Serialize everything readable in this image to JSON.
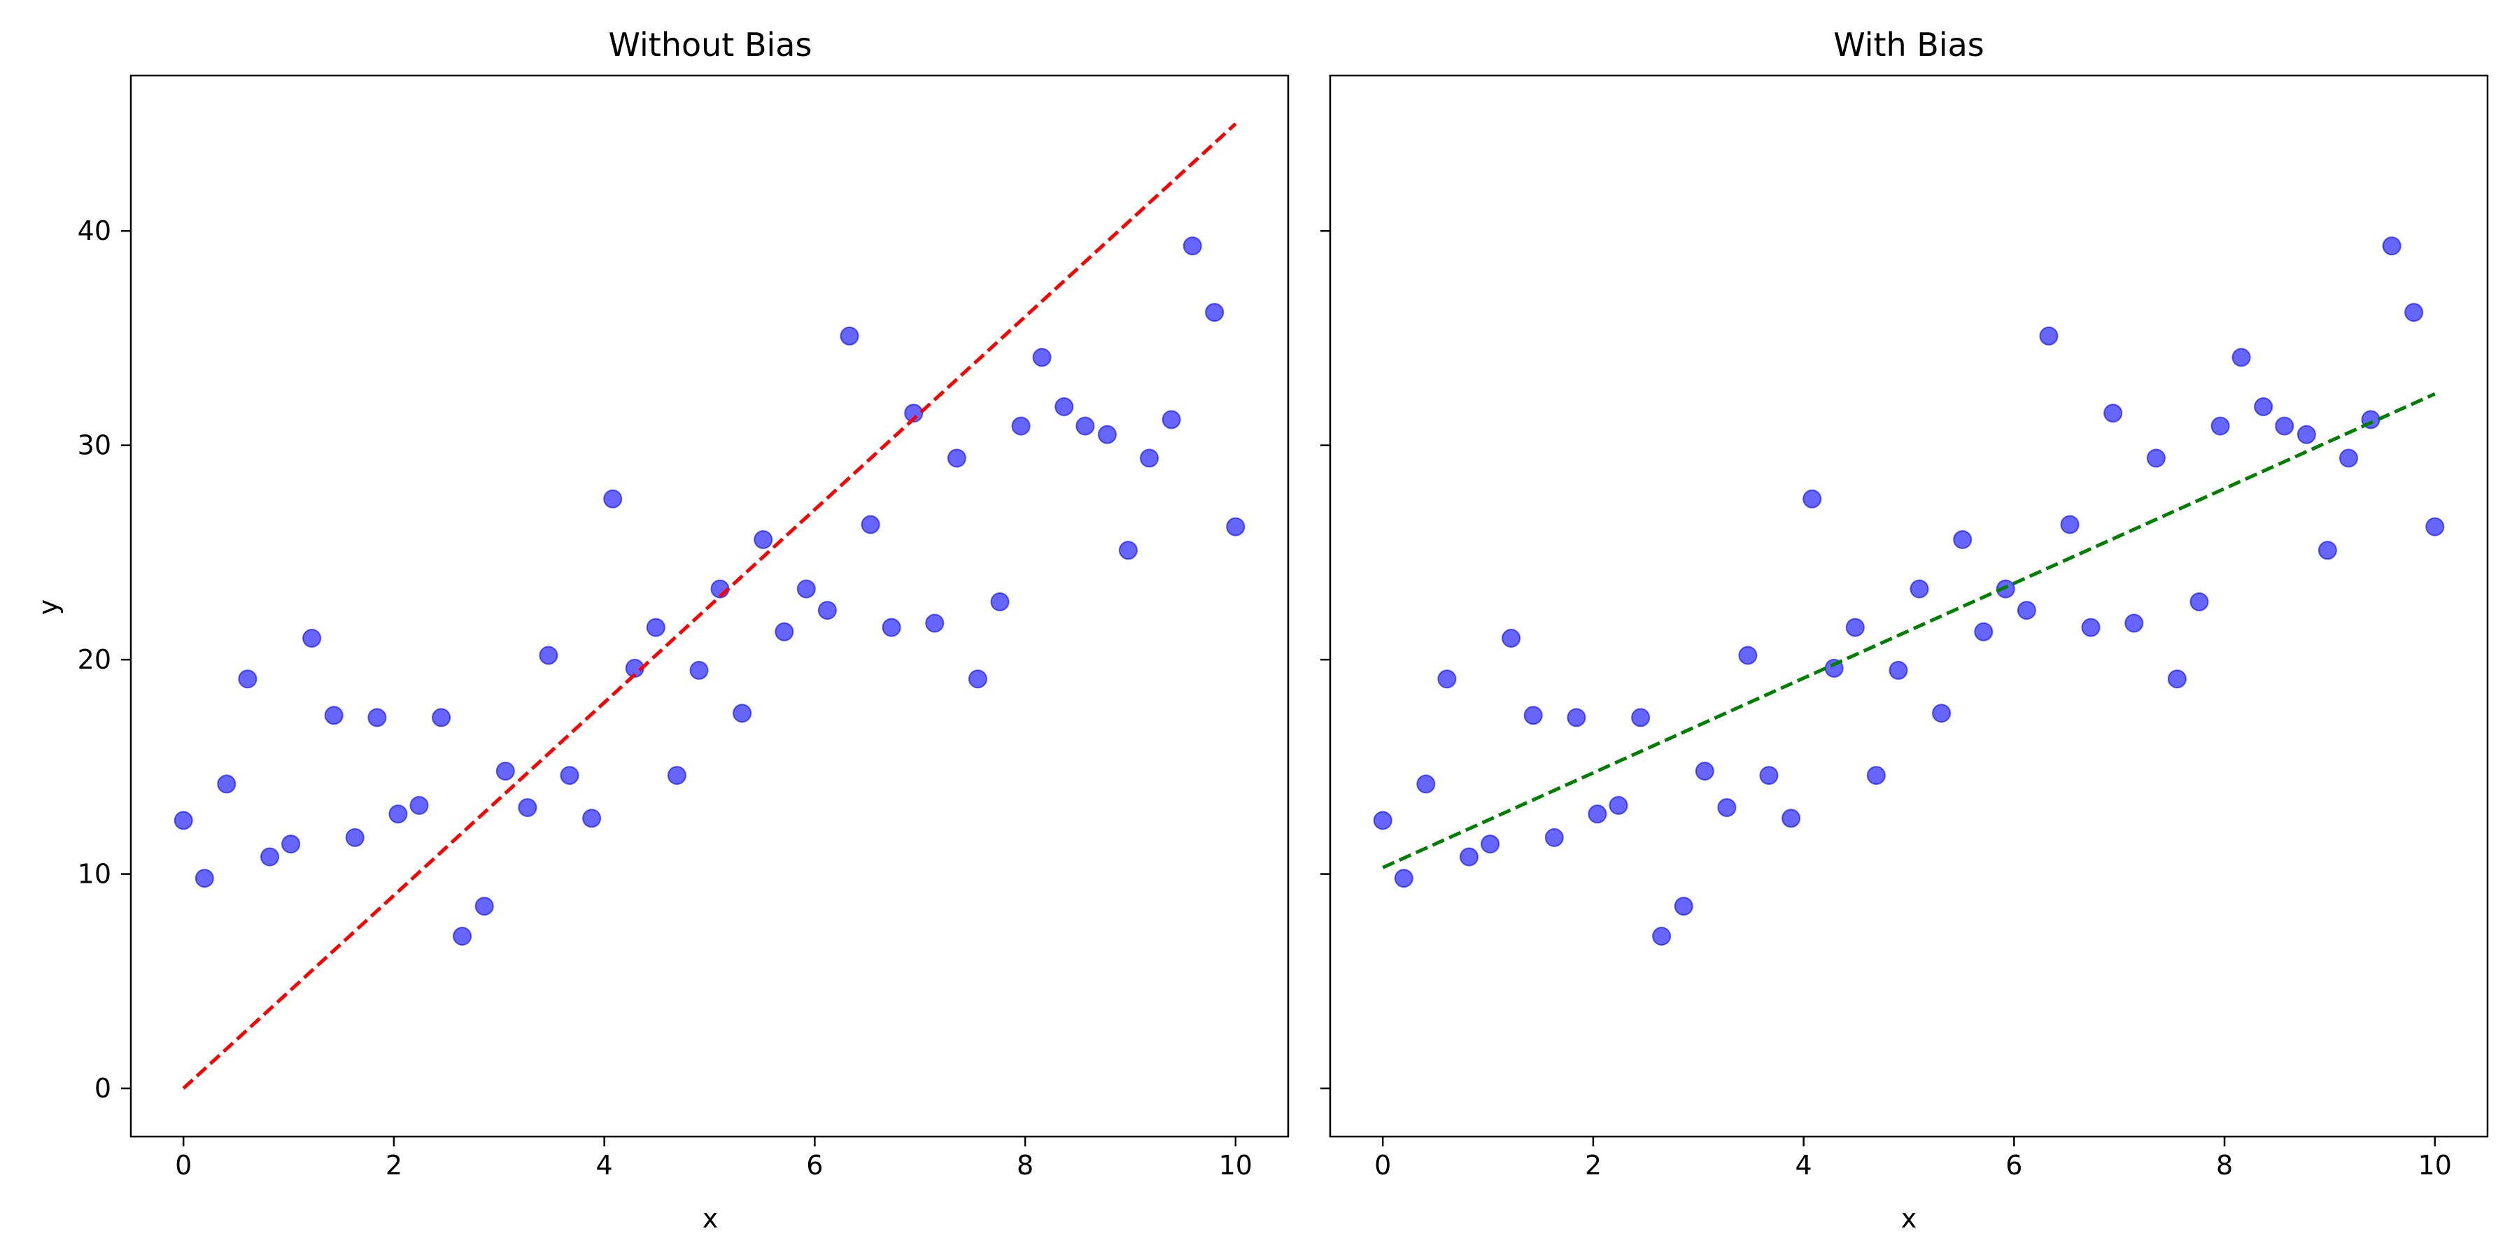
{
  "chart_data": [
    {
      "type": "scatter",
      "title": "Without Bias",
      "xlabel": "x",
      "ylabel": "y",
      "xlim": [
        -0.5,
        10.5
      ],
      "ylim": [
        -2.25,
        47.25
      ],
      "xticks": [
        0,
        2,
        4,
        6,
        8,
        10
      ],
      "yticks": [
        0,
        10,
        20,
        30,
        40
      ],
      "grid": false,
      "legend": "none",
      "points": {
        "color": "#0000ff",
        "opacity": 0.6,
        "x": [
          0.0,
          0.2,
          0.41,
          0.61,
          0.82,
          1.02,
          1.22,
          1.43,
          1.63,
          1.84,
          2.04,
          2.24,
          2.45,
          2.65,
          2.86,
          3.06,
          3.27,
          3.47,
          3.67,
          3.88,
          4.08,
          4.29,
          4.49,
          4.69,
          4.9,
          5.1,
          5.31,
          5.51,
          5.71,
          5.92,
          6.12,
          6.33,
          6.53,
          6.73,
          6.94,
          7.14,
          7.35,
          7.55,
          7.76,
          7.96,
          8.16,
          8.37,
          8.57,
          8.78,
          8.98,
          9.18,
          9.39,
          9.59,
          9.8,
          10.0
        ],
        "y": [
          12.5,
          9.8,
          14.2,
          19.1,
          10.8,
          11.4,
          21.0,
          17.4,
          11.7,
          17.3,
          12.8,
          13.2,
          17.3,
          7.1,
          8.5,
          14.8,
          13.1,
          20.2,
          14.6,
          12.6,
          27.5,
          19.6,
          21.5,
          14.6,
          19.5,
          23.3,
          17.5,
          25.6,
          21.3,
          23.3,
          22.3,
          35.1,
          26.3,
          21.5,
          31.5,
          21.7,
          29.4,
          19.1,
          22.7,
          30.9,
          34.1,
          31.8,
          30.9,
          30.5,
          25.1,
          29.4,
          31.2,
          39.3,
          36.2,
          26.2
        ]
      },
      "line": {
        "style": "dashed",
        "color": "#ff0000",
        "x": [
          0,
          10
        ],
        "y": [
          0,
          45
        ]
      }
    },
    {
      "type": "scatter",
      "title": "With Bias",
      "xlabel": "x",
      "ylabel": "",
      "xlim": [
        -0.5,
        10.5
      ],
      "ylim": [
        -2.25,
        47.25
      ],
      "xticks": [
        0,
        2,
        4,
        6,
        8,
        10
      ],
      "yticks": [
        0,
        10,
        20,
        30,
        40
      ],
      "show_y_tick_labels": false,
      "grid": false,
      "legend": "none",
      "points": {
        "color": "#0000ff",
        "opacity": 0.6,
        "x": [
          0.0,
          0.2,
          0.41,
          0.61,
          0.82,
          1.02,
          1.22,
          1.43,
          1.63,
          1.84,
          2.04,
          2.24,
          2.45,
          2.65,
          2.86,
          3.06,
          3.27,
          3.47,
          3.67,
          3.88,
          4.08,
          4.29,
          4.49,
          4.69,
          4.9,
          5.1,
          5.31,
          5.51,
          5.71,
          5.92,
          6.12,
          6.33,
          6.53,
          6.73,
          6.94,
          7.14,
          7.35,
          7.55,
          7.76,
          7.96,
          8.16,
          8.37,
          8.57,
          8.78,
          8.98,
          9.18,
          9.39,
          9.59,
          9.8,
          10.0
        ],
        "y": [
          12.5,
          9.8,
          14.2,
          19.1,
          10.8,
          11.4,
          21.0,
          17.4,
          11.7,
          17.3,
          12.8,
          13.2,
          17.3,
          7.1,
          8.5,
          14.8,
          13.1,
          20.2,
          14.6,
          12.6,
          27.5,
          19.6,
          21.5,
          14.6,
          19.5,
          23.3,
          17.5,
          25.6,
          21.3,
          23.3,
          22.3,
          35.1,
          26.3,
          21.5,
          31.5,
          21.7,
          29.4,
          19.1,
          22.7,
          30.9,
          34.1,
          31.8,
          30.9,
          30.5,
          25.1,
          29.4,
          31.2,
          39.3,
          36.2,
          26.2
        ]
      },
      "line": {
        "style": "dashed",
        "color": "#008000",
        "x": [
          0,
          10
        ],
        "y": [
          10.3,
          32.4
        ]
      }
    }
  ]
}
